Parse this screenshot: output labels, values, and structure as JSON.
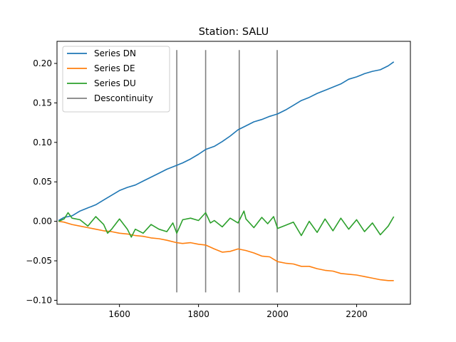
{
  "chart_data": {
    "type": "line",
    "title": "Station: SALU",
    "xlabel": "",
    "ylabel": "",
    "xlim": [
      1442,
      2336
    ],
    "ylim": [
      -0.105,
      0.228
    ],
    "xticks": [
      1600,
      1800,
      2000,
      2200
    ],
    "yticks": [
      -0.1,
      -0.05,
      0.0,
      0.05,
      0.1,
      0.15,
      0.2
    ],
    "ytick_labels": [
      "−0.10",
      "−0.05",
      "0.00",
      "0.05",
      "0.10",
      "0.15",
      "0.20"
    ],
    "grid": false,
    "legend_position": "top-left",
    "series": [
      {
        "name": "Series DN",
        "color": "#1f77b4",
        "x": [
          1446,
          1460,
          1480,
          1500,
          1520,
          1540,
          1560,
          1580,
          1600,
          1620,
          1640,
          1660,
          1680,
          1700,
          1720,
          1745,
          1760,
          1780,
          1800,
          1818,
          1840,
          1860,
          1880,
          1900,
          1920,
          1940,
          1960,
          1980,
          2000,
          2020,
          2040,
          2060,
          2080,
          2100,
          2120,
          2140,
          2160,
          2180,
          2200,
          2220,
          2240,
          2260,
          2280,
          2294
        ],
        "y": [
          0.001,
          0.005,
          0.007,
          0.013,
          0.017,
          0.021,
          0.027,
          0.033,
          0.039,
          0.043,
          0.046,
          0.051,
          0.056,
          0.061,
          0.066,
          0.071,
          0.074,
          0.079,
          0.085,
          0.091,
          0.095,
          0.101,
          0.108,
          0.116,
          0.121,
          0.126,
          0.129,
          0.133,
          0.136,
          0.141,
          0.147,
          0.153,
          0.157,
          0.162,
          0.166,
          0.17,
          0.174,
          0.18,
          0.183,
          0.187,
          0.19,
          0.192,
          0.197,
          0.202
        ]
      },
      {
        "name": "Series DE",
        "color": "#ff7f0e",
        "x": [
          1446,
          1460,
          1480,
          1500,
          1520,
          1540,
          1560,
          1580,
          1600,
          1620,
          1640,
          1660,
          1680,
          1700,
          1720,
          1745,
          1760,
          1780,
          1800,
          1818,
          1840,
          1860,
          1880,
          1900,
          1920,
          1940,
          1960,
          1980,
          2000,
          2020,
          2040,
          2060,
          2080,
          2100,
          2120,
          2140,
          2160,
          2180,
          2200,
          2220,
          2240,
          2260,
          2280,
          2294
        ],
        "y": [
          0.0,
          -0.001,
          -0.004,
          -0.006,
          -0.008,
          -0.01,
          -0.012,
          -0.013,
          -0.015,
          -0.016,
          -0.018,
          -0.019,
          -0.021,
          -0.022,
          -0.024,
          -0.027,
          -0.028,
          -0.027,
          -0.029,
          -0.03,
          -0.035,
          -0.039,
          -0.038,
          -0.035,
          -0.037,
          -0.04,
          -0.044,
          -0.045,
          -0.051,
          -0.053,
          -0.054,
          -0.057,
          -0.057,
          -0.06,
          -0.062,
          -0.063,
          -0.066,
          -0.067,
          -0.068,
          -0.07,
          -0.072,
          -0.074,
          -0.075,
          -0.075
        ]
      },
      {
        "name": "Series DU",
        "color": "#2ca02c",
        "x": [
          1446,
          1460,
          1470,
          1480,
          1500,
          1520,
          1540,
          1560,
          1570,
          1580,
          1600,
          1620,
          1630,
          1640,
          1660,
          1680,
          1700,
          1720,
          1735,
          1745,
          1760,
          1780,
          1800,
          1818,
          1830,
          1840,
          1860,
          1880,
          1900,
          1915,
          1920,
          1940,
          1960,
          1975,
          1990,
          2000,
          2020,
          2040,
          2060,
          2080,
          2100,
          2120,
          2140,
          2160,
          2180,
          2200,
          2220,
          2240,
          2260,
          2280,
          2294
        ],
        "y": [
          0.0,
          0.003,
          0.011,
          0.004,
          0.002,
          -0.006,
          0.006,
          -0.004,
          -0.015,
          -0.01,
          0.003,
          -0.01,
          -0.02,
          -0.01,
          -0.015,
          -0.004,
          -0.01,
          -0.013,
          -0.002,
          -0.015,
          0.002,
          0.004,
          0.001,
          0.011,
          -0.002,
          0.001,
          -0.007,
          0.004,
          -0.002,
          0.013,
          0.003,
          -0.008,
          0.005,
          -0.003,
          0.006,
          -0.009,
          -0.005,
          -0.001,
          -0.018,
          0.0,
          -0.014,
          0.003,
          -0.012,
          0.004,
          -0.01,
          0.002,
          -0.013,
          -0.002,
          -0.017,
          -0.006,
          0.006
        ]
      }
    ],
    "discontinuities": {
      "name": "Descontinuity",
      "color": "#808080",
      "x": [
        1745,
        1818,
        1903,
        1999
      ],
      "y_range": [
        -0.09,
        0.217
      ]
    }
  }
}
